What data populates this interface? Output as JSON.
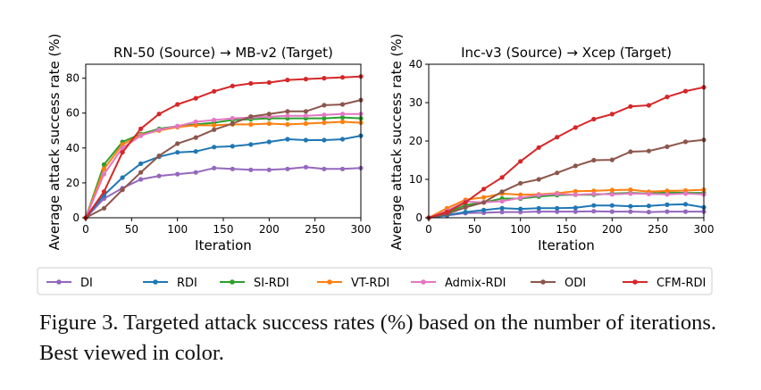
{
  "caption": "Figure 3. Targeted attack success rates (%) based on the number of iterations. Best viewed in color.",
  "legend": {
    "placement": "bottom-center",
    "entries": [
      {
        "name": "DI",
        "color": "#9467bd"
      },
      {
        "name": "RDI",
        "color": "#1f77b4"
      },
      {
        "name": "SI-RDI",
        "color": "#2ca02c"
      },
      {
        "name": "VT-RDI",
        "color": "#ff7f0e"
      },
      {
        "name": "Admix-RDI",
        "color": "#e377c2"
      },
      {
        "name": "ODI",
        "color": "#8c564b"
      },
      {
        "name": "CFM-RDI",
        "color": "#d62728"
      }
    ]
  },
  "chart_data": [
    {
      "type": "line",
      "title": "RN-50 (Source) → MB-v2 (Target)",
      "xlabel": "Iteration",
      "ylabel": "Average attack success rate (%)",
      "xlim": [
        0,
        300
      ],
      "ylim": [
        0,
        88
      ],
      "xticks": [
        0,
        50,
        100,
        150,
        200,
        250,
        300
      ],
      "yticks": [
        0,
        20,
        40,
        60,
        80
      ],
      "grid": false,
      "x": [
        0,
        20,
        40,
        60,
        80,
        100,
        120,
        140,
        160,
        180,
        200,
        220,
        240,
        260,
        280,
        300
      ],
      "series": [
        {
          "name": "DI",
          "color": "#9467bd",
          "values": [
            0,
            11,
            17,
            22,
            24,
            25,
            26,
            28.5,
            28,
            27.5,
            27.5,
            28,
            29,
            28,
            28,
            28.5
          ]
        },
        {
          "name": "RDI",
          "color": "#1f77b4",
          "values": [
            0,
            13,
            23,
            31,
            35,
            37.5,
            38,
            40.5,
            41,
            42,
            43.5,
            45,
            44.5,
            44.5,
            45,
            47
          ]
        },
        {
          "name": "SI-RDI",
          "color": "#2ca02c",
          "values": [
            0,
            30.5,
            43.5,
            48,
            51,
            52.5,
            53.5,
            54.5,
            56,
            56.5,
            57,
            57,
            57,
            57,
            57.5,
            57
          ]
        },
        {
          "name": "VT-RDI",
          "color": "#ff7f0e",
          "values": [
            0,
            28,
            42,
            47.5,
            50,
            52,
            53,
            53,
            53.5,
            53.5,
            54,
            53.5,
            54,
            54.5,
            55,
            54.5
          ]
        },
        {
          "name": "Admix-RDI",
          "color": "#e377c2",
          "values": [
            0,
            25,
            40,
            47,
            50.5,
            52.5,
            55,
            56,
            57,
            57.5,
            58,
            58.5,
            58.5,
            59,
            59.5,
            59.5
          ]
        },
        {
          "name": "ODI",
          "color": "#8c564b",
          "values": [
            0,
            5.5,
            16,
            26,
            35.5,
            42.5,
            46,
            50.5,
            54,
            58,
            59.5,
            61,
            61,
            64.5,
            65,
            67.5
          ]
        },
        {
          "name": "CFM-RDI",
          "color": "#d62728",
          "values": [
            0,
            15,
            37.5,
            51,
            59.5,
            65,
            68.5,
            72.5,
            75.5,
            77,
            77.5,
            79,
            79.5,
            80,
            80.5,
            81
          ]
        }
      ]
    },
    {
      "type": "line",
      "title": "Inc-v3 (Source) → Xcep (Target)",
      "xlabel": "Iteration",
      "ylabel": "Average attack success rate (%)",
      "xlim": [
        0,
        300
      ],
      "ylim": [
        0,
        40
      ],
      "xticks": [
        0,
        50,
        100,
        150,
        200,
        250,
        300
      ],
      "yticks": [
        0,
        10,
        20,
        30,
        40
      ],
      "grid": false,
      "x": [
        0,
        20,
        40,
        60,
        80,
        100,
        120,
        140,
        160,
        180,
        200,
        220,
        240,
        260,
        280,
        300
      ],
      "series": [
        {
          "name": "DI",
          "color": "#9467bd",
          "values": [
            0,
            0.6,
            1.2,
            1.3,
            1.5,
            1.5,
            1.6,
            1.6,
            1.6,
            1.7,
            1.6,
            1.6,
            1.5,
            1.6,
            1.6,
            1.6
          ]
        },
        {
          "name": "RDI",
          "color": "#1f77b4",
          "values": [
            0,
            0.7,
            1.5,
            2.0,
            2.5,
            2.3,
            2.5,
            2.5,
            2.6,
            3.2,
            3.2,
            3.0,
            3.1,
            3.4,
            3.5,
            2.7
          ]
        },
        {
          "name": "SI-RDI",
          "color": "#2ca02c",
          "values": [
            0,
            1.2,
            3.3,
            4.0,
            5.0,
            5.0,
            5.5,
            5.9,
            6.0,
            6.0,
            6.3,
            6.5,
            6.3,
            6.6,
            6.5,
            6.5
          ]
        },
        {
          "name": "VT-RDI",
          "color": "#ff7f0e",
          "values": [
            0,
            2.5,
            4.7,
            5.3,
            6.3,
            6.0,
            6.1,
            6.4,
            6.9,
            7.0,
            7.2,
            7.3,
            6.8,
            7.0,
            7.1,
            7.3
          ]
        },
        {
          "name": "Admix-RDI",
          "color": "#e377c2",
          "values": [
            0,
            1.8,
            4.2,
            4.0,
            4.3,
            5.2,
            5.9,
            6.2,
            6.0,
            6.2,
            6.1,
            6.3,
            6.2,
            6.1,
            6.3,
            6.1
          ]
        },
        {
          "name": "ODI",
          "color": "#8c564b",
          "values": [
            0,
            1.0,
            2.7,
            4.0,
            6.8,
            9.0,
            10.0,
            11.7,
            13.5,
            15.0,
            15.1,
            17.2,
            17.4,
            18.5,
            19.8,
            20.3
          ]
        },
        {
          "name": "CFM-RDI",
          "color": "#d62728",
          "values": [
            0,
            1.5,
            4.0,
            7.5,
            10.5,
            14.7,
            18.3,
            21.0,
            23.5,
            25.7,
            27.0,
            29.0,
            29.3,
            31.5,
            33.0,
            34.0
          ]
        }
      ]
    }
  ]
}
